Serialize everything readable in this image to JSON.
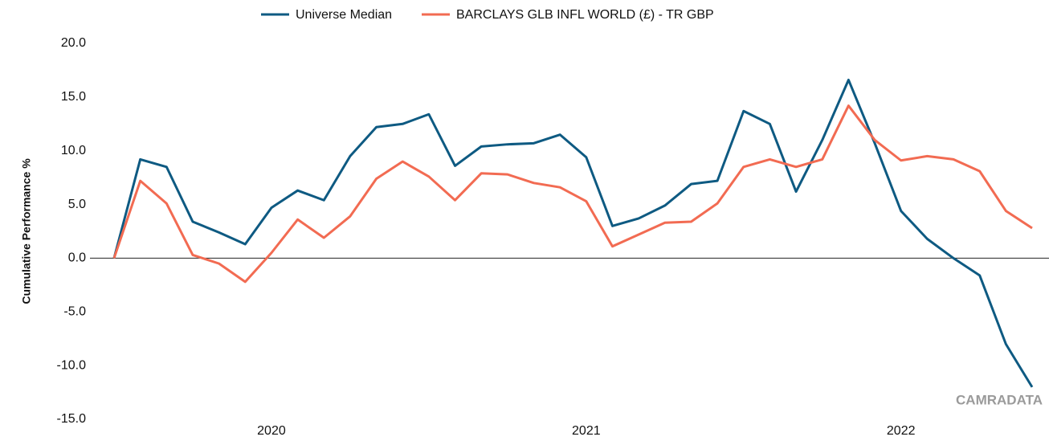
{
  "chart_data": {
    "type": "line",
    "y_label": "Cumulative Performance %",
    "annotation": "CAMRADATA",
    "categories": [
      null,
      null,
      null,
      null,
      null,
      null,
      "2020",
      null,
      null,
      null,
      null,
      null,
      null,
      null,
      null,
      null,
      null,
      null,
      "2021",
      null,
      null,
      null,
      null,
      null,
      null,
      null,
      null,
      null,
      null,
      null,
      "2022",
      null,
      null,
      null,
      null,
      null
    ],
    "series": [
      {
        "name": "Universe Median",
        "color": "#0e5a82",
        "values": [
          0,
          9.2,
          8.5,
          3.4,
          2.4,
          1.3,
          4.7,
          6.3,
          5.4,
          9.5,
          12.2,
          12.5,
          13.4,
          8.6,
          10.4,
          10.6,
          10.7,
          11.5,
          9.4,
          3.0,
          3.7,
          4.9,
          6.9,
          7.2,
          13.7,
          12.5,
          6.2,
          11.0,
          16.6,
          10.7,
          4.4,
          1.8,
          0.0,
          -1.6,
          -8.0,
          -12.0
        ]
      },
      {
        "name": "BARCLAYS GLB INFL WORLD (£) - TR GBP",
        "color": "#f26b52",
        "values": [
          0,
          7.2,
          5.1,
          0.3,
          -0.5,
          -2.2,
          0.5,
          3.6,
          1.9,
          3.9,
          7.4,
          9.0,
          7.6,
          5.4,
          7.9,
          7.8,
          7.0,
          6.6,
          5.3,
          1.1,
          2.2,
          3.3,
          3.4,
          5.1,
          8.5,
          9.2,
          8.5,
          9.2,
          14.2,
          11.0,
          9.1,
          9.5,
          9.2,
          8.1,
          4.4,
          2.8
        ]
      }
    ],
    "ylim": [
      -15,
      20
    ],
    "yticks": [
      {
        "value": 20,
        "label": "20.0"
      },
      {
        "value": 15,
        "label": "15.0"
      },
      {
        "value": 10,
        "label": "10.0"
      },
      {
        "value": 5,
        "label": "5.0"
      },
      {
        "value": 0,
        "label": "0.0"
      },
      {
        "value": -5,
        "label": "-5.0"
      },
      {
        "value": -10,
        "label": "-10.0"
      },
      {
        "value": -15,
        "label": "-15.0"
      }
    ],
    "legend": "top",
    "grid": false
  }
}
